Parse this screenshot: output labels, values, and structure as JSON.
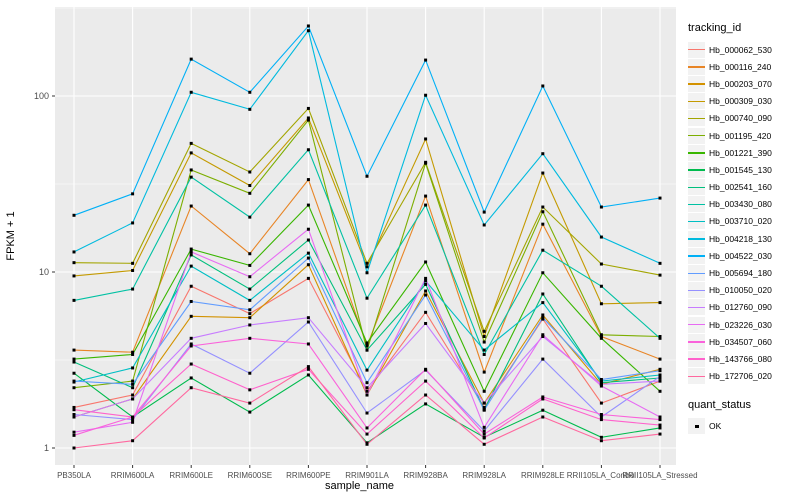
{
  "chart_data": {
    "type": "line",
    "title": "",
    "xlabel": "sample_name",
    "ylabel": "FPKM + 1",
    "y_scale": "log10",
    "y_ticks": [
      1,
      10,
      100
    ],
    "ylim": [
      0.85,
      320
    ],
    "grid": "on",
    "panel_bg": "#EBEBEB",
    "grid_color": "#FFFFFF",
    "tick_label_color": "#4D4D4D",
    "legend_position": "right",
    "legend_title": "tracking_id",
    "legend2_title": "quant_status",
    "legend2_items": [
      {
        "label": "OK",
        "marker": "black-square"
      }
    ],
    "marker": {
      "shape": "square",
      "color": "#000000",
      "size": 3
    },
    "categories": [
      "PB350LA",
      "RRIM600LA",
      "RRIM600LE",
      "RRIM600SE",
      "RRIM600PE",
      "RRIM901LA",
      "RRIM928BA",
      "RRIM928LA",
      "RRIM928LE",
      "RRII105LA_Control",
      "RRII105LA_Stressed"
    ],
    "series": [
      {
        "name": "Hb_000062_530",
        "color": "#F8766D",
        "values": [
          1.7,
          2.0,
          8.3,
          5.8,
          9.2,
          2.1,
          5.9,
          1.7,
          5.4,
          1.8,
          2.4
        ]
      },
      {
        "name": "Hb_000116_240",
        "color": "#E88526",
        "values": [
          3.6,
          3.5,
          23.7,
          12.7,
          33.5,
          3.8,
          27.0,
          2.7,
          18.7,
          4.3,
          3.2
        ]
      },
      {
        "name": "Hb_000203_070",
        "color": "#D39200",
        "values": [
          1.5,
          1.9,
          5.6,
          5.5,
          11.0,
          2.0,
          7.8,
          1.8,
          5.7,
          2.3,
          2.8
        ]
      },
      {
        "name": "Hb_000309_030",
        "color": "#C49A00",
        "values": [
          9.5,
          10.2,
          47.5,
          31.0,
          75.0,
          10.7,
          57.0,
          4.3,
          36.5,
          6.6,
          6.7
        ]
      },
      {
        "name": "Hb_000740_090",
        "color": "#A3A500",
        "values": [
          11.3,
          11.2,
          53.8,
          37.0,
          85.0,
          11.2,
          42.0,
          4.6,
          23.4,
          11.1,
          9.6
        ]
      },
      {
        "name": "Hb_001195_420",
        "color": "#7CAE00",
        "values": [
          2.2,
          2.4,
          38.0,
          28.0,
          73.0,
          3.6,
          41.5,
          4.0,
          22.0,
          4.4,
          4.3
        ]
      },
      {
        "name": "Hb_001221_390",
        "color": "#39B600",
        "values": [
          3.2,
          3.4,
          13.5,
          10.9,
          24.0,
          3.95,
          11.4,
          2.1,
          9.9,
          4.2,
          2.1
        ]
      },
      {
        "name": "Hb_001545_130",
        "color": "#00BB4E",
        "values": [
          2.66,
          1.5,
          2.5,
          1.6,
          2.6,
          1.07,
          1.78,
          1.15,
          1.64,
          1.15,
          1.3
        ]
      },
      {
        "name": "Hb_002541_160",
        "color": "#00BF7D",
        "values": [
          3.08,
          2.2,
          12.5,
          8.0,
          15.2,
          3.6,
          8.5,
          1.65,
          7.5,
          2.35,
          2.5
        ]
      },
      {
        "name": "Hb_003430_080",
        "color": "#00C1A3",
        "values": [
          6.9,
          8.0,
          34.6,
          20.5,
          49.5,
          7.1,
          24.0,
          3.4,
          13.3,
          8.3,
          4.2
        ]
      },
      {
        "name": "Hb_003710_020",
        "color": "#00BFC4",
        "values": [
          2.37,
          2.85,
          10.8,
          6.9,
          12.8,
          2.77,
          8.9,
          3.6,
          6.7,
          2.4,
          2.6
        ]
      },
      {
        "name": "Hb_004218_130",
        "color": "#00BADE",
        "values": [
          13.0,
          19.0,
          105,
          84,
          235,
          9.9,
          101,
          18.5,
          47,
          15.8,
          11.2
        ]
      },
      {
        "name": "Hb_004522_030",
        "color": "#00B0F6",
        "values": [
          21.0,
          27.8,
          162,
          105,
          250,
          35,
          160,
          21.9,
          114,
          23.4,
          26.3
        ]
      },
      {
        "name": "Hb_005694_180",
        "color": "#619CFF",
        "values": [
          2.4,
          2.3,
          6.8,
          6.1,
          12.0,
          2.35,
          7.4,
          1.64,
          5.5,
          2.45,
          2.75
        ]
      },
      {
        "name": "Hb_010050_020",
        "color": "#9590FF",
        "values": [
          1.55,
          1.45,
          3.9,
          2.66,
          5.2,
          1.58,
          2.77,
          1.25,
          3.2,
          1.5,
          2.55
        ]
      },
      {
        "name": "Hb_012760_090",
        "color": "#C77CFF",
        "values": [
          1.5,
          1.9,
          4.2,
          5.0,
          5.5,
          2.2,
          5.1,
          1.8,
          4.3,
          2.3,
          2.4
        ]
      },
      {
        "name": "Hb_023226_030",
        "color": "#E76BF3",
        "values": [
          1.23,
          1.4,
          13.0,
          9.4,
          17.5,
          2.0,
          9.2,
          1.31,
          4.4,
          2.25,
          1.5
        ]
      },
      {
        "name": "Hb_034507_060",
        "color": "#FA62DB",
        "values": [
          1.18,
          1.5,
          3.8,
          4.2,
          3.9,
          1.3,
          2.8,
          1.2,
          1.95,
          1.55,
          1.45
        ]
      },
      {
        "name": "Hb_143766_080",
        "color": "#FF61CC",
        "values": [
          1.65,
          1.5,
          3.0,
          2.14,
          2.8,
          1.2,
          2.4,
          1.14,
          1.9,
          1.45,
          1.35
        ]
      },
      {
        "name": "Hb_172706_020",
        "color": "#FF689F",
        "values": [
          1.0,
          1.1,
          2.2,
          1.8,
          2.9,
          1.05,
          2.0,
          1.05,
          1.5,
          1.1,
          1.2
        ]
      }
    ]
  }
}
